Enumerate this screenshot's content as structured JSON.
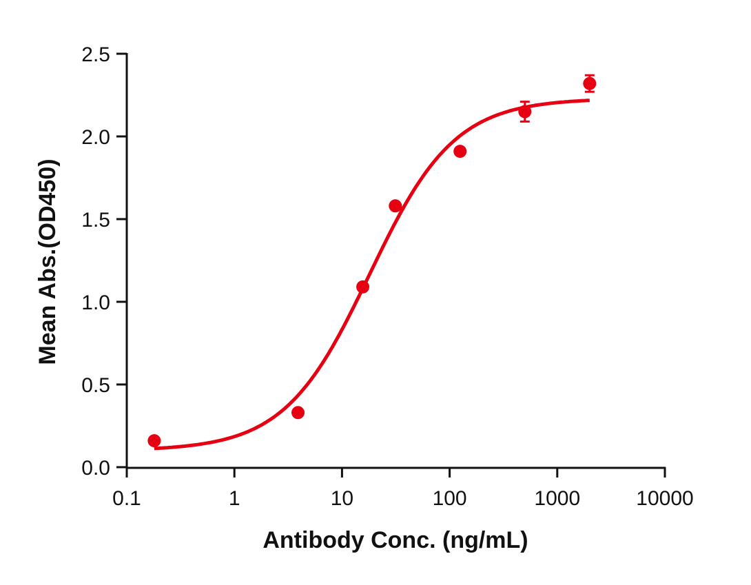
{
  "chart_data": {
    "type": "scatter",
    "title": "",
    "xlabel": "Antibody Conc. (ng/mL)",
    "ylabel": "Mean Abs.(OD450)",
    "xscale": "log",
    "xlim": [
      0.1,
      10000
    ],
    "ylim": [
      0.0,
      2.5
    ],
    "x_ticks": [
      0.1,
      1,
      10,
      100,
      1000,
      10000
    ],
    "x_tick_labels": [
      "0.1",
      "1",
      "10",
      "100",
      "1000",
      "10000"
    ],
    "y_ticks": [
      0.0,
      0.5,
      1.0,
      1.5,
      2.0,
      2.5
    ],
    "y_tick_labels": [
      "0.0",
      "0.5",
      "1.0",
      "1.5",
      "2.0",
      "2.5"
    ],
    "grid": false,
    "legend": null,
    "series": [
      {
        "name": "Mean Abs.",
        "color": "#e60012",
        "marker": "circle",
        "x": [
          0.18,
          3.9,
          15.6,
          31.3,
          125,
          500,
          2000
        ],
        "y": [
          0.16,
          0.33,
          1.09,
          1.58,
          1.91,
          2.15,
          2.32
        ],
        "error": [
          0,
          0,
          0,
          0,
          0,
          0.06,
          0.05
        ]
      }
    ],
    "fit": {
      "type": "4PL",
      "color": "#e60012",
      "bottom": 0.1,
      "top": 2.23,
      "ec50": 18,
      "hill": 1.1,
      "x_range": [
        0.18,
        2000
      ]
    }
  }
}
